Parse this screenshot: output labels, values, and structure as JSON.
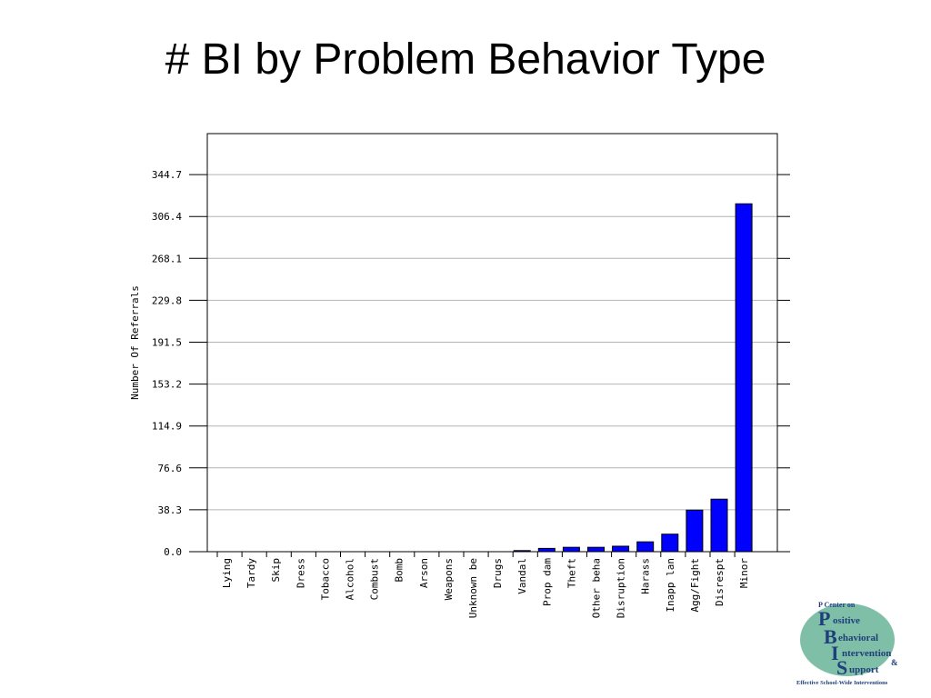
{
  "slide": {
    "title": "# BI by Problem Behavior Type"
  },
  "chart_data": {
    "type": "bar",
    "ylabel": "Number Of Referrals",
    "ylim": [
      0,
      383
    ],
    "yticks": [
      "0.0",
      "38.3",
      "76.6",
      "114.9",
      "153.2",
      "191.5",
      "229.8",
      "268.1",
      "306.4",
      "344.7"
    ],
    "grid": true,
    "bar_color": "#0000ff",
    "categories": [
      "Lying",
      "Tardy",
      "Skip",
      "Dress",
      "Tobacco",
      "Alcohol",
      "Combust",
      "Bomb",
      "Arson",
      "Weapons",
      "Unknown be",
      "Drugs",
      "Vandal",
      "Prop dam",
      "Theft",
      "Other beha",
      "Disruption",
      "Harass",
      "Inapp lan",
      "Agg/Fight",
      "Disrespt",
      "Minor"
    ],
    "values": [
      0,
      0,
      0,
      0,
      0,
      0,
      0,
      0,
      0,
      0,
      0,
      0,
      1,
      3,
      4,
      4,
      5,
      9,
      16,
      38,
      48,
      318
    ]
  },
  "logo": {
    "line1": "P Center on",
    "line2": "ositive",
    "line3": "ehavioral",
    "line4": "ntervention",
    "line5": "&",
    "line6": "upport",
    "tagline": "Effective School-Wide Interventions",
    "letters": [
      "P",
      "B",
      "I",
      "S"
    ],
    "color": "#1f3f7a",
    "disc_color": "#7fbfa8"
  }
}
